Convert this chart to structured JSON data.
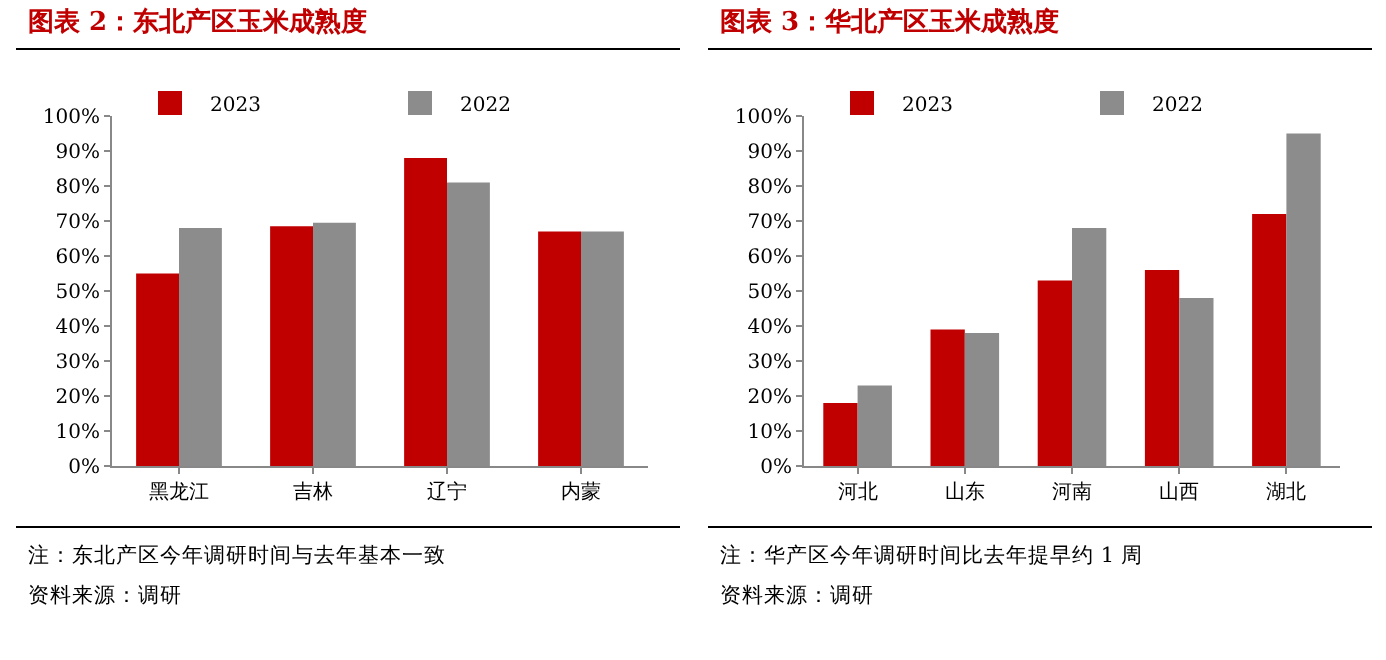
{
  "chart_data": [
    {
      "type": "bar",
      "title": "图表 2：东北产区玉米成熟度",
      "categories": [
        "黑龙江",
        "吉林",
        "辽宁",
        "内蒙"
      ],
      "series": [
        {
          "name": "2023",
          "color": "#c00000",
          "values": [
            55,
            68.5,
            88,
            67
          ]
        },
        {
          "name": "2022",
          "color": "#8c8c8c",
          "values": [
            68,
            69.5,
            81,
            67
          ]
        }
      ],
      "ylim": [
        0,
        100
      ],
      "yticks": [
        {
          "value": 0,
          "label": "0%"
        },
        {
          "value": 10,
          "label": "10%"
        },
        {
          "value": 20,
          "label": "20%"
        },
        {
          "value": 30,
          "label": "30%"
        },
        {
          "value": 40,
          "label": "40%"
        },
        {
          "value": 50,
          "label": "50%"
        },
        {
          "value": 60,
          "label": "60%"
        },
        {
          "value": 70,
          "label": "70%"
        },
        {
          "value": 80,
          "label": "80%"
        },
        {
          "value": 90,
          "label": "90%"
        },
        {
          "value": 100,
          "label": "100%"
        }
      ],
      "grid": false,
      "legend": "top",
      "annotations": [
        "注：东北产区今年调研时间与去年基本一致",
        "资料来源：调研"
      ]
    },
    {
      "type": "bar",
      "title": "图表 3：华北产区玉米成熟度",
      "categories": [
        "河北",
        "山东",
        "河南",
        "山西",
        "湖北"
      ],
      "series": [
        {
          "name": "2023",
          "color": "#c00000",
          "values": [
            18,
            39,
            53,
            56,
            72
          ]
        },
        {
          "name": "2022",
          "color": "#8c8c8c",
          "values": [
            23,
            38,
            68,
            48,
            95
          ]
        }
      ],
      "ylim": [
        0,
        100
      ],
      "yticks": [
        {
          "value": 0,
          "label": "0%"
        },
        {
          "value": 10,
          "label": "10%"
        },
        {
          "value": 20,
          "label": "20%"
        },
        {
          "value": 30,
          "label": "30%"
        },
        {
          "value": 40,
          "label": "40%"
        },
        {
          "value": 50,
          "label": "50%"
        },
        {
          "value": 60,
          "label": "60%"
        },
        {
          "value": 70,
          "label": "70%"
        },
        {
          "value": 80,
          "label": "80%"
        },
        {
          "value": 90,
          "label": "90%"
        },
        {
          "value": 100,
          "label": "100%"
        }
      ],
      "grid": false,
      "legend": "top",
      "annotations": [
        "注：华产区今年调研时间比去年提早约 1 周",
        "资料来源：调研"
      ]
    }
  ]
}
